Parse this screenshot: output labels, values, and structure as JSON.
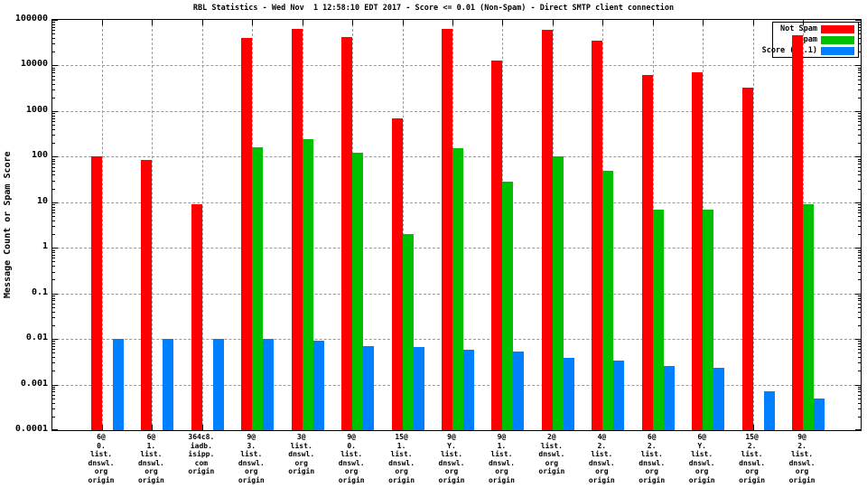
{
  "chart_data": {
    "type": "bar",
    "title": "RBL Statistics - Wed Nov  1 12:58:10 EDT 2017 - Score <= 0.01 (Non-Spam) - Direct SMTP client connection",
    "ylabel": "Message Count or Spam Score",
    "xlabel": "",
    "y_scale": "log",
    "ylim": [
      0.0001,
      100000
    ],
    "yticks": [
      "100000",
      "10000",
      "1000",
      "100",
      "10",
      "1",
      "0.1",
      "0.01",
      "0.001",
      "0.0001"
    ],
    "grid": true,
    "legend_position": "top-right",
    "categories": [
      "6@\n0.\nlist.\ndnswl.\norg\norigin",
      "6@\n1.\nlist.\ndnswl.\norg\norigin",
      "364c8.\niadb.\nisipp.\ncom\norigin",
      "9@\n3.\nlist.\ndnswl.\norg\norigin",
      "3@\nlist.\ndnswl.\norg\norigin",
      "9@\n0.\nlist.\ndnswl.\norg\norigin",
      "15@\n1.\nlist.\ndnswl.\norg\norigin",
      "9@\nY.\nlist.\ndnswl.\norg\norigin",
      "9@\n1.\nlist.\ndnswl.\norg\norigin",
      "2@\nlist.\ndnswl.\norg\norigin",
      "4@\n2.\nlist.\ndnswl.\norg\norigin",
      "6@\n2.\nlist.\ndnswl.\norg\norigin",
      "6@\nY.\nlist.\ndnswl.\norg\norigin",
      "15@\n2.\nlist.\ndnswl.\norg\norigin",
      "9@\n2.\nlist.\ndnswl.\norg\norigin"
    ],
    "series": [
      {
        "name": "Not Spam",
        "color": "#ff0000",
        "values": [
          100,
          85,
          9,
          40000,
          62000,
          42000,
          700,
          63000,
          13000,
          60000,
          35000,
          6200,
          7200,
          3200,
          45000
        ]
      },
      {
        "name": "Spam",
        "color": "#00c000",
        "values": [
          null,
          null,
          null,
          160,
          240,
          120,
          2,
          155,
          28,
          100,
          50,
          7,
          7,
          null,
          9
        ]
      },
      {
        "name": "Score (0..1)",
        "color": "#0080ff",
        "values": [
          0.01,
          0.01,
          0.01,
          0.01,
          0.009,
          0.007,
          0.0066,
          0.0059,
          0.0054,
          0.0038,
          0.0034,
          0.0026,
          0.0023,
          0.0007,
          0.0005
        ]
      }
    ]
  }
}
